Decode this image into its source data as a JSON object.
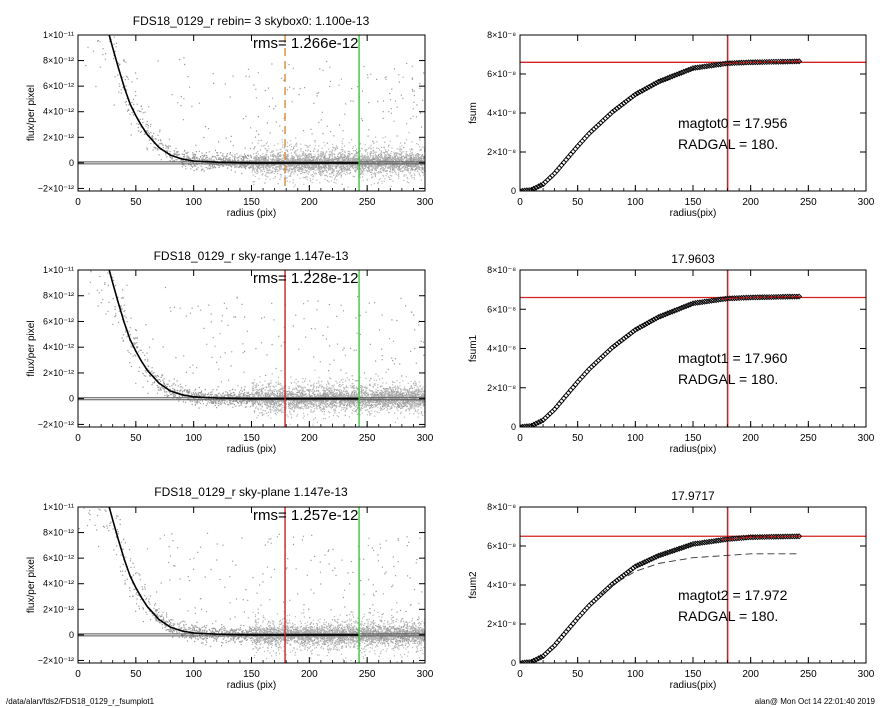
{
  "footer": {
    "path": "/data/alan/fds2/FDS18_0129_r_fsumplot1",
    "stamp": "alan@  Mon Oct 14 22:01:40 2019"
  },
  "chart_data": [
    {
      "type": "scatter",
      "title": "FDS18_0129_r rebin= 3    skybox0:  1.100e-13",
      "annotation": "rms= 1.266e-12",
      "xlabel": "radius (pix)",
      "ylabel": "flux/per pixel",
      "xlim": [
        0,
        300
      ],
      "ylim": [
        -2.2e-12,
        1e-11
      ],
      "xticks": [
        0,
        50,
        100,
        150,
        200,
        250,
        300
      ],
      "yticks": [
        -2e-12,
        0,
        2e-12,
        4e-12,
        6e-12,
        8e-12,
        1e-11
      ],
      "ytick_labels": [
        "−2×10⁻¹²",
        "0",
        "2×10⁻¹²",
        "4×10⁻¹²",
        "6×10⁻¹²",
        "8×10⁻¹²",
        "1×10⁻¹¹"
      ],
      "profile": {
        "x": [
          27,
          30,
          35,
          40,
          45,
          50,
          55,
          60,
          70,
          80,
          90,
          100,
          120,
          150,
          200,
          243
        ],
        "y": [
          1e-11,
          9e-12,
          7.4e-12,
          5.9e-12,
          4.6e-12,
          3.7e-12,
          2.9e-12,
          2.2e-12,
          1.2e-12,
          6e-13,
          3e-13,
          1.5e-13,
          5e-14,
          0,
          0,
          0
        ]
      },
      "zero_line": 0,
      "vlines": [
        {
          "x": 179,
          "color": "#e08a30",
          "style": "dashed"
        },
        {
          "x": 243,
          "color": "#33cc33",
          "style": "solid"
        }
      ],
      "grid": false,
      "colors": {
        "points": "#9a9a9a",
        "profile": "#000000"
      }
    },
    {
      "type": "line",
      "title": "",
      "xlabel": "radius(pix)",
      "ylabel": "fsum",
      "xlim": [
        0,
        300
      ],
      "ylim": [
        0,
        8e-08
      ],
      "xticks": [
        0,
        50,
        100,
        150,
        200,
        250,
        300
      ],
      "yticks": [
        0,
        2e-08,
        4e-08,
        6e-08,
        8e-08
      ],
      "ytick_labels": [
        "0",
        "2×10⁻⁸",
        "4×10⁻⁸",
        "6×10⁻⁸",
        "8×10⁻⁸"
      ],
      "curve": {
        "x": [
          0,
          10,
          20,
          30,
          40,
          50,
          60,
          80,
          100,
          120,
          150,
          180,
          200,
          243
        ],
        "y": [
          0,
          6e-10,
          3.5e-09,
          9e-09,
          1.6e-08,
          2.3e-08,
          2.95e-08,
          4.05e-08,
          4.95e-08,
          5.6e-08,
          6.3e-08,
          6.55e-08,
          6.6e-08,
          6.65e-08
        ]
      },
      "hline": 6.6e-08,
      "vline": 180,
      "annotation_lines": [
        "magtot0 =  17.956",
        "RADGAL =    180."
      ],
      "colors": {
        "curve": "#000000",
        "ref": "#d42020"
      }
    },
    {
      "type": "scatter",
      "title": "FDS18_0129_r sky-range  1.147e-13",
      "annotation": "rms= 1.228e-12",
      "xlabel": "radius (pix)",
      "ylabel": "flux/per pixel",
      "xlim": [
        0,
        300
      ],
      "ylim": [
        -2.2e-12,
        1e-11
      ],
      "xticks": [
        0,
        50,
        100,
        150,
        200,
        250,
        300
      ],
      "yticks": [
        -2e-12,
        0,
        2e-12,
        4e-12,
        6e-12,
        8e-12,
        1e-11
      ],
      "ytick_labels": [
        "−2×10⁻¹²",
        "0",
        "2×10⁻¹²",
        "4×10⁻¹²",
        "6×10⁻¹²",
        "8×10⁻¹²",
        "1×10⁻¹¹"
      ],
      "profile": {
        "x": [
          27,
          30,
          35,
          40,
          45,
          50,
          55,
          60,
          70,
          80,
          90,
          100,
          120,
          150,
          200,
          243
        ],
        "y": [
          1e-11,
          9e-12,
          7.4e-12,
          5.9e-12,
          4.6e-12,
          3.7e-12,
          2.9e-12,
          2.2e-12,
          1.2e-12,
          6e-13,
          3e-13,
          1.5e-13,
          5e-14,
          0,
          0,
          0
        ]
      },
      "zero_line": 0,
      "vlines": [
        {
          "x": 179,
          "color": "#d42020",
          "style": "solid"
        },
        {
          "x": 243,
          "color": "#33cc33",
          "style": "solid"
        }
      ],
      "grid": false,
      "colors": {
        "points": "#9a9a9a",
        "profile": "#000000"
      }
    },
    {
      "type": "line",
      "title": "17.9603",
      "xlabel": "radius(pix)",
      "ylabel": "fsum1",
      "xlim": [
        0,
        300
      ],
      "ylim": [
        0,
        8e-08
      ],
      "xticks": [
        0,
        50,
        100,
        150,
        200,
        250,
        300
      ],
      "yticks": [
        0,
        2e-08,
        4e-08,
        6e-08,
        8e-08
      ],
      "ytick_labels": [
        "0",
        "2×10⁻⁸",
        "4×10⁻⁸",
        "6×10⁻⁸",
        "8×10⁻⁸"
      ],
      "curve": {
        "x": [
          0,
          10,
          20,
          30,
          40,
          50,
          60,
          80,
          100,
          120,
          150,
          180,
          200,
          243
        ],
        "y": [
          0,
          6e-10,
          3.5e-09,
          9e-09,
          1.6e-08,
          2.3e-08,
          2.95e-08,
          4.05e-08,
          4.95e-08,
          5.6e-08,
          6.3e-08,
          6.55e-08,
          6.6e-08,
          6.65e-08
        ]
      },
      "hline": 6.6e-08,
      "vline": 180,
      "annotation_lines": [
        "magtot1 =  17.960",
        "RADGAL =    180."
      ],
      "colors": {
        "curve": "#000000",
        "ref": "#d42020"
      }
    },
    {
      "type": "scatter",
      "title": "FDS18_0129_r sky-plane  1.147e-13",
      "annotation": "rms= 1.257e-12",
      "xlabel": "radius (pix)",
      "ylabel": "flux/per pixel",
      "xlim": [
        0,
        300
      ],
      "ylim": [
        -2.2e-12,
        1e-11
      ],
      "xticks": [
        0,
        50,
        100,
        150,
        200,
        250,
        300
      ],
      "yticks": [
        -2e-12,
        0,
        2e-12,
        4e-12,
        6e-12,
        8e-12,
        1e-11
      ],
      "ytick_labels": [
        "−2×10⁻¹²",
        "0",
        "2×10⁻¹²",
        "4×10⁻¹²",
        "6×10⁻¹²",
        "8×10⁻¹²",
        "1×10⁻¹¹"
      ],
      "profile": {
        "x": [
          27,
          30,
          35,
          40,
          45,
          50,
          55,
          60,
          70,
          80,
          90,
          100,
          120,
          150,
          200,
          243
        ],
        "y": [
          1e-11,
          9e-12,
          7.4e-12,
          5.9e-12,
          4.6e-12,
          3.7e-12,
          2.9e-12,
          2.2e-12,
          1.2e-12,
          6e-13,
          3e-13,
          1.5e-13,
          5e-14,
          0,
          0,
          0
        ]
      },
      "zero_line": 0,
      "vlines": [
        {
          "x": 179,
          "color": "#d42020",
          "style": "solid"
        },
        {
          "x": 243,
          "color": "#33cc33",
          "style": "solid"
        }
      ],
      "grid": false,
      "colors": {
        "points": "#9a9a9a",
        "profile": "#000000"
      }
    },
    {
      "type": "line",
      "title": "17.9717",
      "xlabel": "radius(pix)",
      "ylabel": "fsum2",
      "xlim": [
        0,
        300
      ],
      "ylim": [
        0,
        8e-08
      ],
      "xticks": [
        0,
        50,
        100,
        150,
        200,
        250,
        300
      ],
      "yticks": [
        0,
        2e-08,
        4e-08,
        6e-08,
        8e-08
      ],
      "ytick_labels": [
        "0",
        "2×10⁻⁸",
        "4×10⁻⁸",
        "6×10⁻⁸",
        "8×10⁻⁸"
      ],
      "curve": {
        "x": [
          0,
          10,
          20,
          30,
          40,
          50,
          60,
          80,
          100,
          120,
          150,
          180,
          200,
          243
        ],
        "y": [
          0,
          6e-10,
          3.5e-09,
          9e-09,
          1.6e-08,
          2.3e-08,
          2.95e-08,
          4.05e-08,
          4.95e-08,
          5.5e-08,
          6.1e-08,
          6.35e-08,
          6.45e-08,
          6.5e-08
        ]
      },
      "dashed_curve": {
        "x": [
          70,
          80,
          100,
          120,
          150,
          200,
          243
        ],
        "y": [
          3.5e-08,
          4e-08,
          4.7e-08,
          5.1e-08,
          5.4e-08,
          5.6e-08,
          5.6e-08
        ]
      },
      "hline": 6.5e-08,
      "vline": 180,
      "annotation_lines": [
        "magtot2 =  17.972",
        "RADGAL =    180."
      ],
      "colors": {
        "curve": "#000000",
        "ref": "#d42020"
      }
    }
  ]
}
